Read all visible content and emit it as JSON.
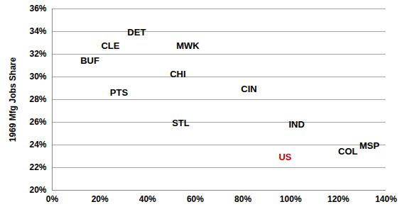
{
  "chart_data": {
    "type": "scatter",
    "y_label": "1969 Mfg Jobs Share",
    "marker": "label",
    "grid": "y",
    "labels": [
      "DET",
      "CLE",
      "BUF",
      "MWK",
      "CHI",
      "PTS",
      "CIN",
      "STL",
      "IND",
      "US",
      "COL",
      "MSP"
    ],
    "x": [
      35.4,
      24.4,
      15.8,
      56.9,
      52.7,
      28.0,
      82.5,
      53.9,
      102.5,
      97.7,
      124.0,
      133.0
    ],
    "values": [
      33.9,
      32.7,
      31.4,
      32.7,
      30.2,
      28.6,
      28.9,
      25.9,
      25.8,
      22.9,
      23.4,
      23.9
    ],
    "colors": [
      "#000000",
      "#000000",
      "#000000",
      "#000000",
      "#000000",
      "#000000",
      "#000000",
      "#000000",
      "#000000",
      "#c00000",
      "#000000",
      "#000000"
    ],
    "xlim": [
      0,
      140
    ],
    "xticks": [
      {
        "value": 0,
        "label": "0%"
      },
      {
        "value": 20,
        "label": "20%"
      },
      {
        "value": 40,
        "label": "40%"
      },
      {
        "value": 60,
        "label": "60%"
      },
      {
        "value": 80,
        "label": "80%"
      },
      {
        "value": 100,
        "label": "100%"
      },
      {
        "value": 120,
        "label": "120%"
      },
      {
        "value": 140,
        "label": "140%"
      }
    ],
    "ylim": [
      20,
      36
    ],
    "yticks": [
      {
        "value": 20,
        "label": "20%"
      },
      {
        "value": 22,
        "label": "22%"
      },
      {
        "value": 24,
        "label": "24%"
      },
      {
        "value": 26,
        "label": "26%"
      },
      {
        "value": 28,
        "label": "28%"
      },
      {
        "value": 30,
        "label": "30%"
      },
      {
        "value": 32,
        "label": "32%"
      },
      {
        "value": 34,
        "label": "34%"
      },
      {
        "value": 36,
        "label": "36%"
      }
    ]
  }
}
